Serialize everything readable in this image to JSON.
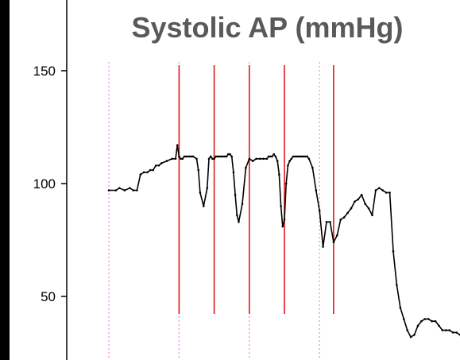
{
  "chart_data": {
    "type": "line",
    "title": "Systolic AP (mmHg)",
    "xlabel": "",
    "ylabel": "",
    "ylim": [
      27,
      163
    ],
    "xlim": [
      0,
      1000
    ],
    "y_ticks": [
      150,
      100,
      50
    ],
    "y_tick_labels": [
      "150",
      "100",
      "50"
    ],
    "grid": false,
    "legend": "none",
    "series": [
      {
        "color": "#000000",
        "x": [
          0,
          20,
          30,
          45,
          60,
          70,
          80,
          90,
          100,
          110,
          118,
          126,
          134,
          142,
          150,
          165,
          180,
          190,
          195,
          200,
          205,
          210,
          215,
          220,
          225,
          230,
          235,
          240,
          250,
          255,
          260,
          270,
          280,
          285,
          290,
          295,
          300,
          305,
          310,
          315,
          320,
          325,
          330,
          335,
          340,
          345,
          350,
          355,
          360,
          365,
          370,
          380,
          390,
          400,
          410,
          420,
          430,
          440,
          450,
          455,
          460,
          465,
          470,
          475,
          480,
          485,
          490,
          495,
          500,
          505,
          510,
          515,
          520,
          525,
          530,
          535,
          540,
          545,
          550,
          555,
          560,
          565,
          570,
          580,
          590,
          600,
          610,
          620,
          630,
          640,
          650,
          660,
          670,
          680,
          690,
          700,
          710,
          720,
          730,
          740,
          750,
          760,
          770,
          780,
          790,
          800,
          810,
          820,
          830,
          840,
          850,
          860,
          870,
          880,
          890,
          900,
          910,
          920,
          930,
          940,
          950,
          960,
          970,
          980,
          990,
          1000
        ],
        "values": [
          97,
          97,
          98,
          97,
          98,
          97,
          97,
          104,
          105,
          105,
          106,
          106,
          108,
          108,
          109,
          110,
          111,
          111,
          117,
          112,
          111,
          111,
          112,
          112,
          112,
          112,
          112,
          112,
          111,
          106,
          96,
          90,
          98,
          111,
          112,
          111,
          111,
          112,
          112,
          112,
          112,
          112,
          112,
          112,
          113,
          113,
          112,
          105,
          95,
          86,
          83,
          91,
          107,
          111,
          110,
          111,
          111,
          111,
          111,
          112,
          112,
          112,
          113,
          112,
          110,
          104,
          90,
          81,
          84,
          100,
          108,
          110,
          111,
          112,
          112,
          112,
          112,
          112,
          112,
          112,
          112,
          112,
          111,
          107,
          97,
          88,
          72,
          83,
          83,
          74,
          77,
          84,
          85,
          87,
          89,
          92,
          93,
          95,
          91,
          89,
          86,
          97,
          98,
          97,
          96,
          96,
          70,
          55,
          45,
          40,
          35,
          32,
          33,
          37,
          39,
          40,
          40,
          39,
          39,
          37,
          35,
          35,
          35,
          34,
          34,
          33
        ]
      }
    ],
    "vlines_red_x": [
      200,
      300,
      400,
      500,
      640
    ],
    "vlines_dotted_x": [
      0,
      200,
      400,
      600
    ],
    "colors": {
      "background": "#000000",
      "plot_area": "#ffffff",
      "trace": "#000000",
      "event_lines": "#e31a1c",
      "dotted_lines": "#ee82ee",
      "title": "#595959"
    }
  }
}
